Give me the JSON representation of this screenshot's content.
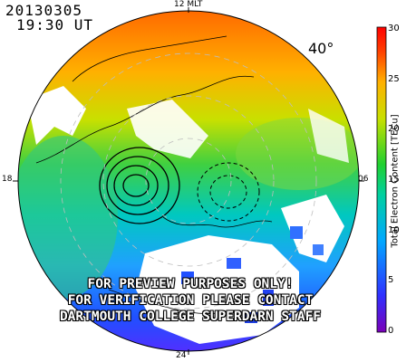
{
  "header": {
    "date": "20130305",
    "time": "19:30 UT"
  },
  "mlt_labels": {
    "top": "12 MLT",
    "left": "18",
    "right": "06",
    "bottom": "24"
  },
  "latitude_label": "40°",
  "colorbar": {
    "title": "Total Electron Content [TECu]",
    "ticks": [
      "0",
      "5",
      "10",
      "15",
      "20",
      "25",
      "30"
    ],
    "range": [
      0,
      30
    ],
    "colors": [
      "#7a00b8",
      "#3030ff",
      "#00a8ff",
      "#00d0a0",
      "#20d030",
      "#c8e000",
      "#ffb000",
      "#ff4000",
      "#ff0000"
    ]
  },
  "watermark": [
    "FOR PREVIEW PURPOSES ONLY!",
    "FOR VERIFICATION PLEASE CONTACT",
    "DARTMOUTH COLLEGE SUPERDARN STAFF"
  ]
}
